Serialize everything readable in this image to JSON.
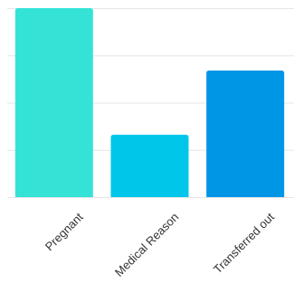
{
  "chart_data": {
    "type": "bar",
    "categories": [
      "Pregnant",
      "Medical Reason",
      "Transferred out"
    ],
    "values": [
      100,
      33,
      67
    ],
    "ylim": [
      0,
      100
    ],
    "grid": true,
    "colors": [
      "#34e3d6",
      "#00c7ea",
      "#0096e6"
    ],
    "grid_color": "#e5e5e5"
  }
}
